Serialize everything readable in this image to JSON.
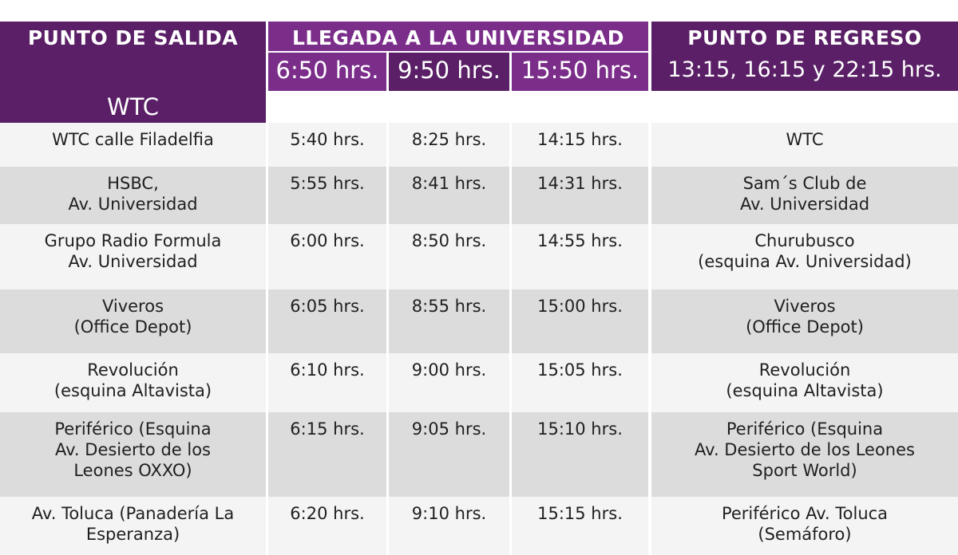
{
  "header": {
    "departure_title": "PUNTO DE SALIDA",
    "departure_sub": "WTC",
    "arrival_title": "LLEGADA A LA UNIVERSIDAD",
    "arrival_times": [
      "6:50 hrs.",
      "9:50 hrs.",
      "15:50 hrs."
    ],
    "return_title": "PUNTO DE REGRESO",
    "return_times": "13:15, 16:15 y 22:15 hrs."
  },
  "colors": {
    "dark_purple": "#5a1f66",
    "purple": "#7b2d8a",
    "row_light": "#f4f4f4",
    "row_dark": "#dcdcdc"
  },
  "rows": [
    {
      "stop": "WTC calle Filadelfia",
      "t1": "5:40 hrs.",
      "t2": "8:25 hrs.",
      "t3": "14:15 hrs.",
      "ret": "WTC"
    },
    {
      "stop": "HSBC,\nAv. Universidad",
      "t1": "5:55 hrs.",
      "t2": "8:41 hrs.",
      "t3": "14:31 hrs.",
      "ret": "Sam´s Club de\nAv. Universidad"
    },
    {
      "stop": "Grupo Radio Formula\nAv. Universidad",
      "t1": "6:00 hrs.",
      "t2": "8:50 hrs.",
      "t3": "14:55 hrs.",
      "ret": "Churubusco\n(esquina Av. Universidad)"
    },
    {
      "stop": "Viveros\n(Office Depot)",
      "t1": "6:05 hrs.",
      "t2": "8:55 hrs.",
      "t3": "15:00 hrs.",
      "ret": "Viveros\n(Office Depot)"
    },
    {
      "stop": "Revolución\n(esquina  Altavista)",
      "t1": "6:10 hrs.",
      "t2": "9:00 hrs.",
      "t3": "15:05 hrs.",
      "ret": "Revolución\n(esquina Altavista)"
    },
    {
      "stop": "Periférico (Esquina\nAv. Desierto de los\nLeones OXXO)",
      "t1": "6:15 hrs.",
      "t2": "9:05 hrs.",
      "t3": "15:10 hrs.",
      "ret": "Periférico (Esquina\nAv. Desierto de los Leones\nSport World)"
    },
    {
      "stop": "Av. Toluca (Panadería La\nEsperanza)",
      "t1": "6:20 hrs.",
      "t2": "9:10 hrs.",
      "t3": "15:15 hrs.",
      "ret": "Periférico Av. Toluca\n(Semáforo)"
    }
  ]
}
